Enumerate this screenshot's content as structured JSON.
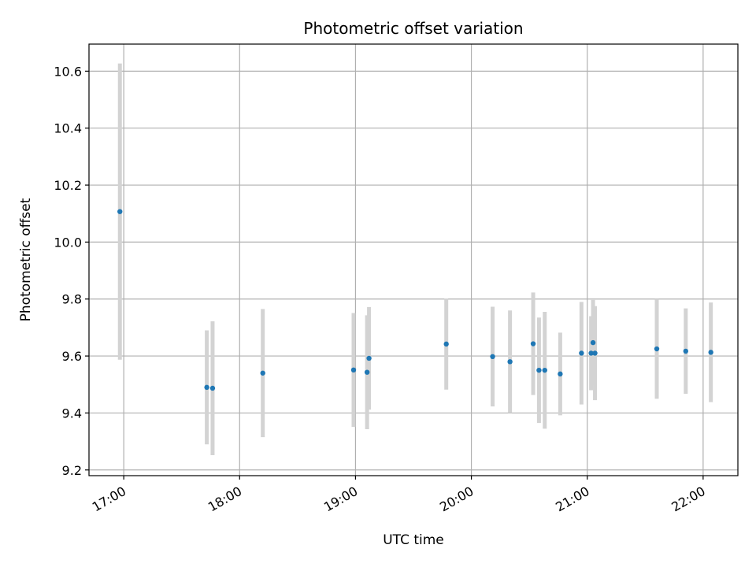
{
  "chart_data": {
    "type": "scatter",
    "title": "Photometric offset variation",
    "xlabel": "UTC time",
    "ylabel": "Photometric offset",
    "x_axis_kind": "time",
    "xlim": [
      "16:42",
      "22:18"
    ],
    "ylim": [
      9.18,
      10.695
    ],
    "x_ticks": [
      "17:00",
      "18:00",
      "19:00",
      "20:00",
      "21:00",
      "22:00"
    ],
    "y_ticks": [
      9.2,
      9.4,
      9.6,
      9.8,
      10.0,
      10.2,
      10.4,
      10.6
    ],
    "grid": true,
    "legend": "none",
    "colors": {
      "point": "#1f77b4",
      "errorbar": "#d3d3d3",
      "grid": "#b0b0b0",
      "axis": "#000000"
    },
    "series": [
      {
        "points": [
          {
            "x": "16:58",
            "y": 10.107,
            "yerr": 0.52
          },
          {
            "x": "17:43",
            "y": 9.49,
            "yerr": 0.2
          },
          {
            "x": "17:46",
            "y": 9.487,
            "yerr": 0.235
          },
          {
            "x": "18:12",
            "y": 9.54,
            "yerr": 0.225
          },
          {
            "x": "18:59",
            "y": 9.551,
            "yerr": 0.2
          },
          {
            "x": "19:06",
            "y": 9.543,
            "yerr": 0.2
          },
          {
            "x": "19:07",
            "y": 9.592,
            "yerr": 0.18
          },
          {
            "x": "19:47",
            "y": 9.642,
            "yerr": 0.16
          },
          {
            "x": "20:11",
            "y": 9.598,
            "yerr": 0.175
          },
          {
            "x": "20:20",
            "y": 9.58,
            "yerr": 0.18
          },
          {
            "x": "20:32",
            "y": 9.643,
            "yerr": 0.18
          },
          {
            "x": "20:35",
            "y": 9.55,
            "yerr": 0.185
          },
          {
            "x": "20:38",
            "y": 9.55,
            "yerr": 0.205
          },
          {
            "x": "20:46",
            "y": 9.537,
            "yerr": 0.145
          },
          {
            "x": "20:57",
            "y": 9.61,
            "yerr": 0.18
          },
          {
            "x": "21:02",
            "y": 9.61,
            "yerr": 0.13
          },
          {
            "x": "21:03",
            "y": 9.647,
            "yerr": 0.15
          },
          {
            "x": "21:04",
            "y": 9.61,
            "yerr": 0.165
          },
          {
            "x": "21:36",
            "y": 9.625,
            "yerr": 0.175
          },
          {
            "x": "21:51",
            "y": 9.617,
            "yerr": 0.15
          },
          {
            "x": "22:04",
            "y": 9.613,
            "yerr": 0.175
          }
        ]
      }
    ]
  }
}
